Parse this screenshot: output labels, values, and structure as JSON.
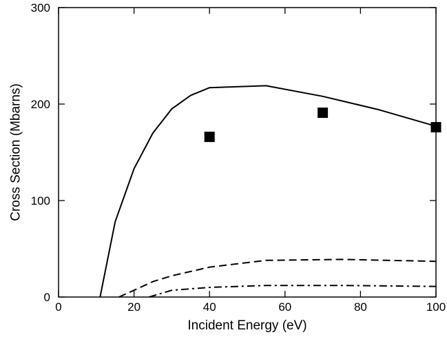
{
  "chart_data": {
    "type": "line",
    "title": "",
    "xlabel": "Incident Energy (eV)",
    "ylabel": "Cross Section (Mbarns)",
    "xlim": [
      0,
      100
    ],
    "ylim": [
      0,
      300
    ],
    "xticks": [
      0,
      20,
      40,
      60,
      80,
      100
    ],
    "yticks": [
      0,
      100,
      200,
      300
    ],
    "xtick_labels": [
      "0",
      "20",
      "40",
      "60",
      "80",
      "100"
    ],
    "ytick_labels": [
      "0",
      "100",
      "200",
      "300"
    ],
    "grid": false,
    "legend": "none",
    "series": [
      {
        "style": "solid",
        "color": "#000000",
        "x": [
          11,
          15,
          20,
          25,
          30,
          35,
          40,
          55,
          70,
          85,
          100
        ],
        "y": [
          0,
          78,
          133,
          170,
          195,
          209,
          217,
          219,
          208,
          194,
          177
        ]
      },
      {
        "style": "dashed",
        "color": "#000000",
        "x": [
          16,
          20,
          25,
          30,
          40,
          55,
          75,
          100
        ],
        "y": [
          0,
          7,
          16,
          22,
          31,
          38,
          39,
          37
        ]
      },
      {
        "style": "dashdot",
        "color": "#000000",
        "x": [
          24,
          30,
          40,
          55,
          75,
          100
        ],
        "y": [
          0,
          7,
          10,
          12,
          12,
          11
        ]
      },
      {
        "style": "markers",
        "marker": "square",
        "color": "#000000",
        "x": [
          40,
          70,
          100
        ],
        "y": [
          166,
          191,
          176
        ]
      }
    ]
  }
}
